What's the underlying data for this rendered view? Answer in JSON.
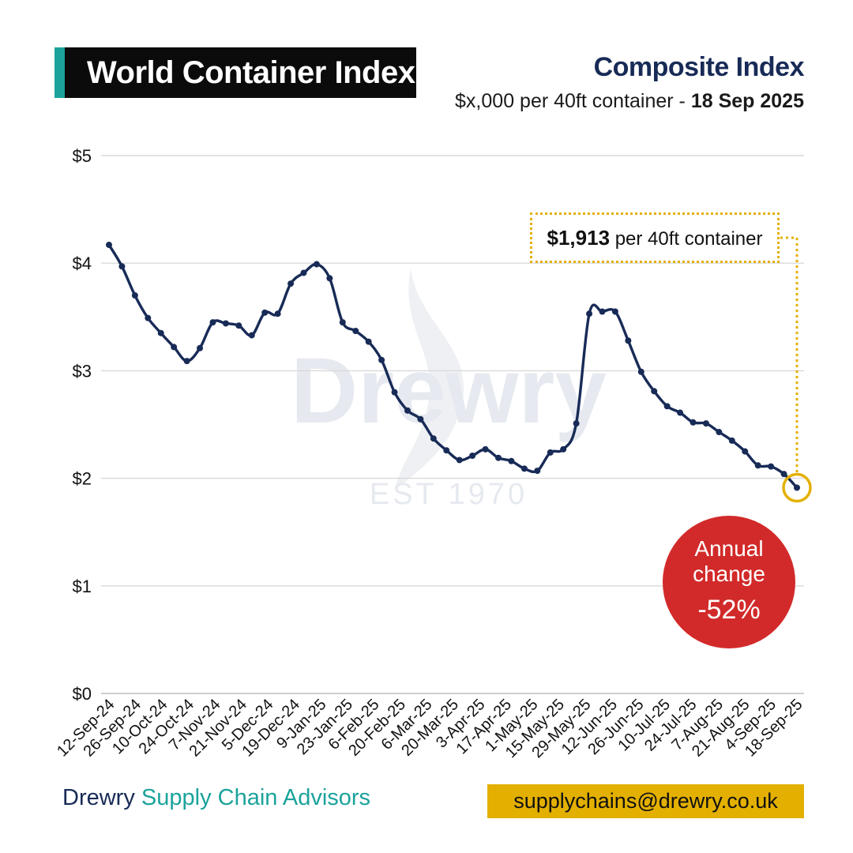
{
  "header": {
    "title": "World Container Index",
    "subtitle": "Composite Index",
    "unit_text": "$x,000 per 40ft container - ",
    "date": "18 Sep 2025"
  },
  "callout": {
    "value": "$1,913",
    "suffix": " per 40ft container"
  },
  "annual_change": {
    "label": "Annual change",
    "value": "-52%"
  },
  "watermark": {
    "brand": "Drewry",
    "est": "EST 1970"
  },
  "footer": {
    "brand_main": "Drewry",
    "brand_sub": " Supply Chain Advisors",
    "email": "supplychains@drewry.co.uk"
  },
  "colors": {
    "title_bg": "#0b0b0b",
    "teal": "#1ba39c",
    "navy": "#182b57",
    "gold": "#e3b000",
    "red": "#d22a2a",
    "grid": "#d9d9d9"
  },
  "chart_data": {
    "type": "line",
    "title": "Composite Index",
    "ylabel": "$x,000 per 40ft container",
    "ylim": [
      0,
      5
    ],
    "yticks": [
      0,
      1,
      2,
      3,
      4,
      5
    ],
    "ytick_labels": [
      "$0",
      "$1",
      "$2",
      "$3",
      "$4",
      "$5"
    ],
    "xtick_labels": [
      "12-Sep-24",
      "26-Sep-24",
      "10-Oct-24",
      "24-Oct-24",
      "7-Nov-24",
      "21-Nov-24",
      "5-Dec-24",
      "19-Dec-24",
      "9-Jan-25",
      "23-Jan-25",
      "6-Feb-25",
      "20-Feb-25",
      "6-Mar-25",
      "20-Mar-25",
      "3-Apr-25",
      "17-Apr-25",
      "1-May-25",
      "15-May-25",
      "29-May-25",
      "12-Jun-25",
      "26-Jun-25",
      "10-Jul-25",
      "24-Jul-25",
      "7-Aug-25",
      "21-Aug-25",
      "4-Sep-25",
      "18-Sep-25"
    ],
    "series": [
      {
        "name": "World Container Index",
        "values": [
          4.17,
          3.97,
          3.7,
          3.49,
          3.35,
          3.22,
          3.09,
          3.21,
          3.45,
          3.44,
          3.42,
          3.33,
          3.54,
          3.53,
          3.81,
          3.91,
          3.99,
          3.86,
          3.45,
          3.37,
          3.27,
          3.1,
          2.8,
          2.63,
          2.55,
          2.37,
          2.26,
          2.17,
          2.21,
          2.27,
          2.19,
          2.16,
          2.09,
          2.07,
          2.24,
          2.27,
          2.51,
          3.53,
          3.55,
          3.55,
          3.28,
          2.99,
          2.81,
          2.67,
          2.61,
          2.52,
          2.51,
          2.43,
          2.35,
          2.25,
          2.12,
          2.11,
          2.04,
          1.913
        ]
      }
    ],
    "highlight_last": true
  }
}
